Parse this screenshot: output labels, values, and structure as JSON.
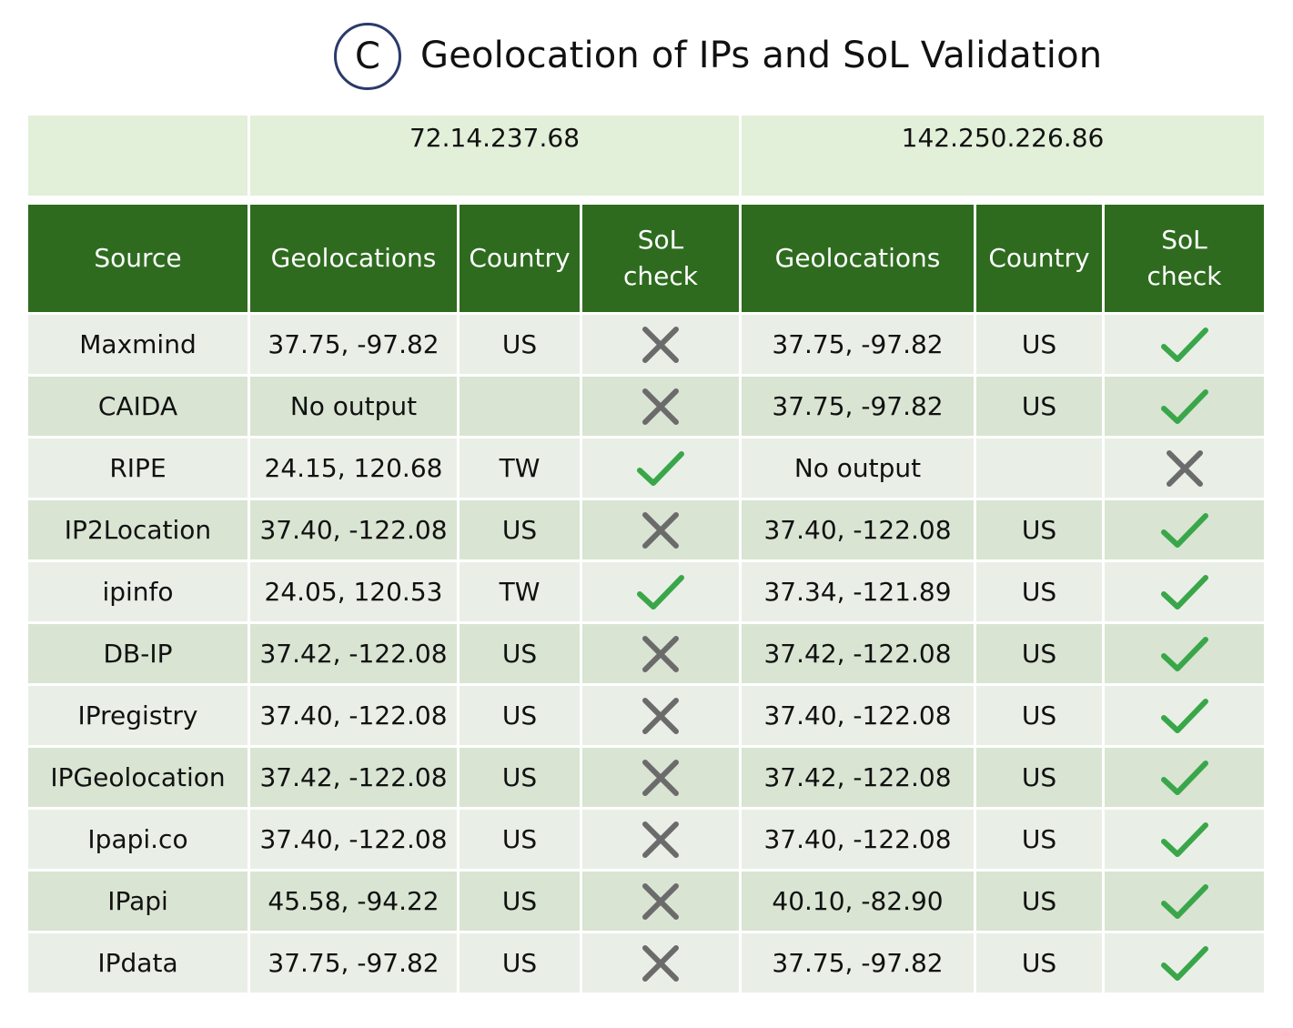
{
  "header": {
    "badge": "C",
    "title": "Geolocation of IPs and SoL Validation"
  },
  "ips": [
    "72.14.237.68",
    "142.250.226.86"
  ],
  "columns": {
    "source": "Source",
    "geo": "Geolocations",
    "country": "Country",
    "sol": "SoL check"
  },
  "rows": [
    {
      "source": "Maxmind",
      "geo1": "37.75, -97.82",
      "c1": "US",
      "sol1": "cross",
      "geo2": "37.75, -97.82",
      "c2": "US",
      "sol2": "check"
    },
    {
      "source": "CAIDA",
      "geo1": "No output",
      "c1": "",
      "sol1": "cross",
      "geo2": "37.75, -97.82",
      "c2": "US",
      "sol2": "check"
    },
    {
      "source": "RIPE",
      "geo1": "24.15, 120.68",
      "c1": "TW",
      "sol1": "check",
      "geo2": "No output",
      "c2": "",
      "sol2": "cross"
    },
    {
      "source": "IP2Location",
      "geo1": "37.40, -122.08",
      "c1": "US",
      "sol1": "cross",
      "geo2": "37.40, -122.08",
      "c2": "US",
      "sol2": "check"
    },
    {
      "source": "ipinfo",
      "geo1": "24.05, 120.53",
      "c1": "TW",
      "sol1": "check",
      "geo2": "37.34, -121.89",
      "c2": "US",
      "sol2": "check"
    },
    {
      "source": "DB-IP",
      "geo1": "37.42, -122.08",
      "c1": "US",
      "sol1": "cross",
      "geo2": "37.42, -122.08",
      "c2": "US",
      "sol2": "check"
    },
    {
      "source": "IPregistry",
      "geo1": "37.40, -122.08",
      "c1": "US",
      "sol1": "cross",
      "geo2": "37.40, -122.08",
      "c2": "US",
      "sol2": "check"
    },
    {
      "source": "IPGeolocation",
      "geo1": "37.42, -122.08",
      "c1": "US",
      "sol1": "cross",
      "geo2": "37.42, -122.08",
      "c2": "US",
      "sol2": "check"
    },
    {
      "source": "Ipapi.co",
      "geo1": "37.40, -122.08",
      "c1": "US",
      "sol1": "cross",
      "geo2": "37.40, -122.08",
      "c2": "US",
      "sol2": "check"
    },
    {
      "source": "IPapi",
      "geo1": "45.58, -94.22",
      "c1": "US",
      "sol1": "cross",
      "geo2": "40.10, -82.90",
      "c2": "US",
      "sol2": "check"
    },
    {
      "source": "IPdata",
      "geo1": "37.75, -97.82",
      "c1": "US",
      "sol1": "cross",
      "geo2": "37.75, -97.82",
      "c2": "US",
      "sol2": "check"
    }
  ],
  "colors": {
    "check": "#3aa64a",
    "cross": "#6b6b6b",
    "header_bg": "#2e6b1f",
    "ip_bg": "#e2efd9"
  }
}
